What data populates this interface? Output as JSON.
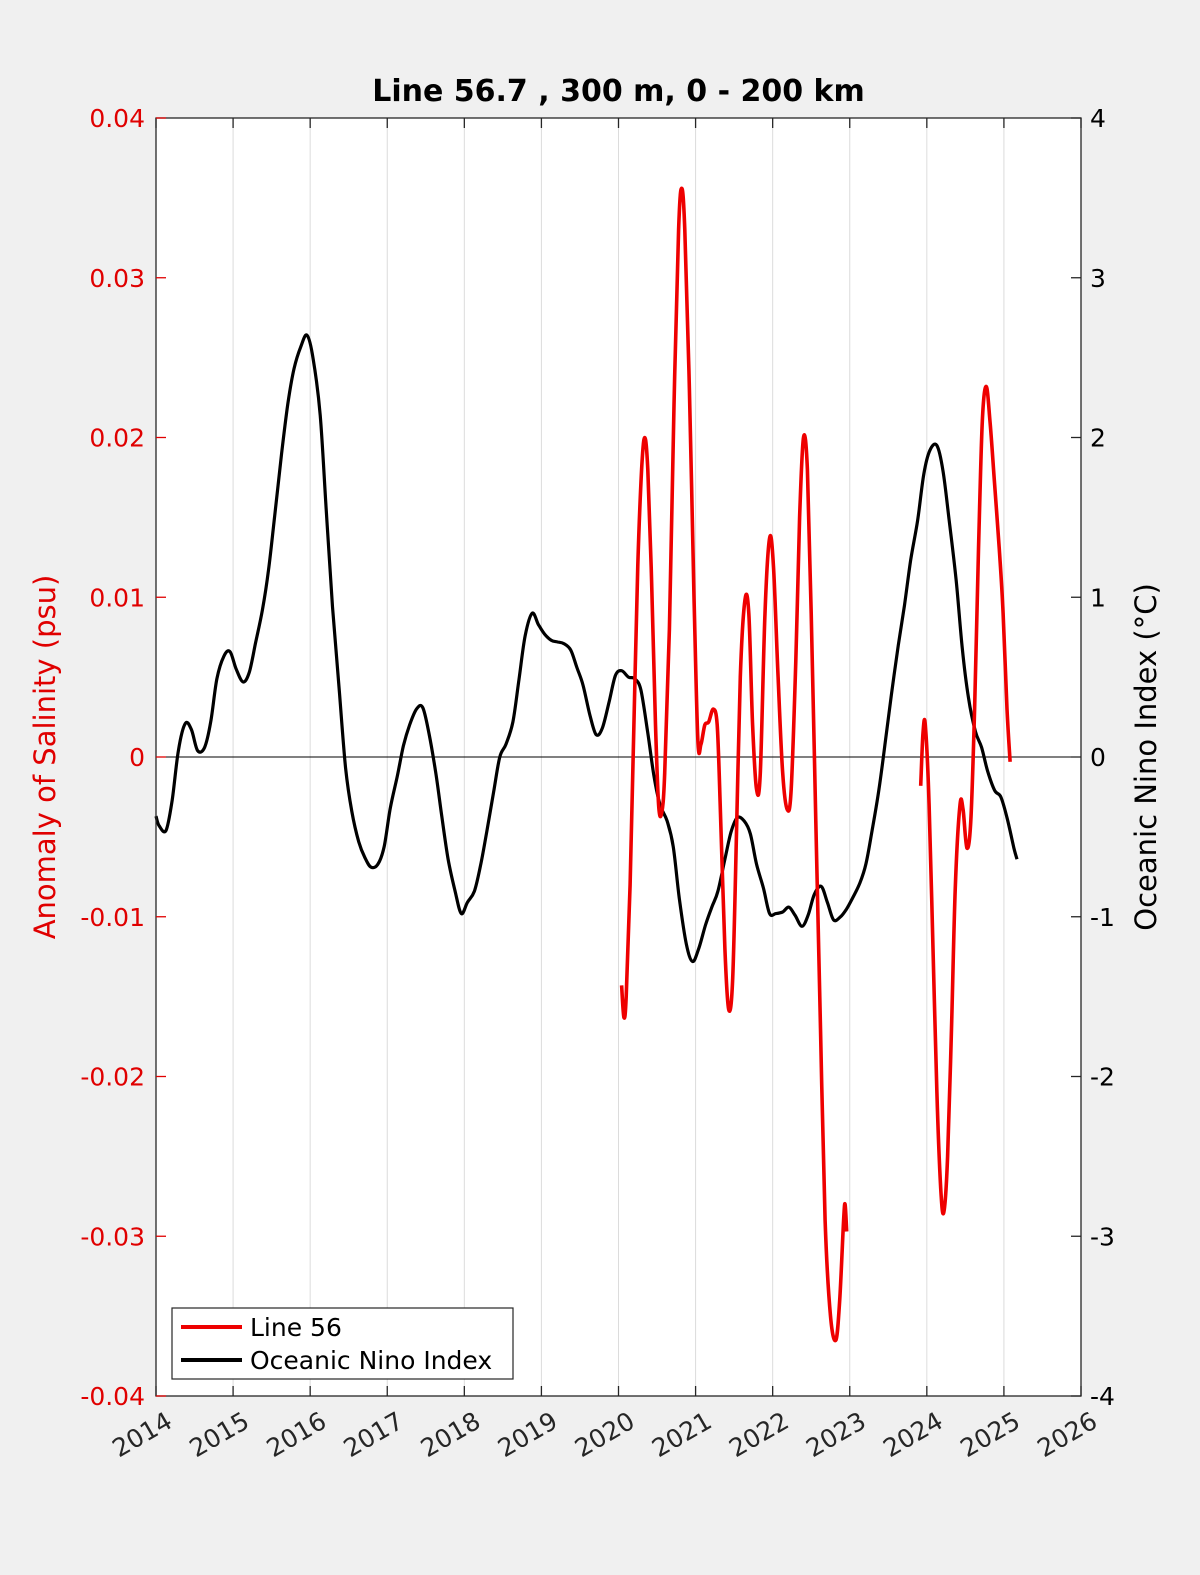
{
  "chart_data": {
    "type": "line",
    "title": "Line 56.7 , 300 m, 0 - 200 km",
    "xlabel": "",
    "ylabel_left": "Anomaly of Salinity (psu)",
    "ylabel_right": "Oceanic Nino Index (°C)",
    "xlim": [
      2014,
      2026
    ],
    "ylim_left": [
      -0.04,
      0.04
    ],
    "ylim_right": [
      -4,
      4
    ],
    "x_ticks": [
      "2014",
      "2015",
      "2016",
      "2017",
      "2018",
      "2019",
      "2020",
      "2021",
      "2022",
      "2023",
      "2024",
      "2025",
      "2026"
    ],
    "y_left_ticks": [
      "0.04",
      "0.03",
      "0.02",
      "0.01",
      "0",
      "-0.01",
      "-0.02",
      "-0.03",
      "-0.04"
    ],
    "y_right_ticks": [
      "4",
      "3",
      "2",
      "1",
      "0",
      "-1",
      "-2",
      "-3",
      "-4"
    ],
    "grid": "vertical",
    "zero_line": true,
    "legend_position": "bottom-left",
    "colors": {
      "line56": "#ee0000",
      "oni": "#000000",
      "left_axis": "#e00000",
      "grid": "#dcdcdc"
    },
    "series": [
      {
        "name": "Line 56",
        "axis": "left",
        "segments": [
          [
            [
              2020.04,
              -0.0143
            ],
            [
              2020.07,
              -0.0163
            ],
            [
              2020.1,
              -0.015
            ],
            [
              2020.15,
              -0.008
            ],
            [
              2020.2,
              0.002
            ],
            [
              2020.25,
              0.012
            ],
            [
              2020.3,
              0.018
            ],
            [
              2020.34,
              0.02
            ],
            [
              2020.38,
              0.018
            ],
            [
              2020.43,
              0.011
            ],
            [
              2020.48,
              0.002
            ],
            [
              2020.52,
              -0.003
            ],
            [
              2020.56,
              -0.0035
            ],
            [
              2020.6,
              -0.001
            ],
            [
              2020.66,
              0.008
            ],
            [
              2020.72,
              0.022
            ],
            [
              2020.78,
              0.033
            ],
            [
              2020.82,
              0.0356
            ],
            [
              2020.86,
              0.033
            ],
            [
              2020.92,
              0.023
            ],
            [
              2020.98,
              0.01
            ],
            [
              2021.03,
              0.001
            ],
            [
              2021.07,
              0.0008
            ],
            [
              2021.12,
              0.002
            ],
            [
              2021.17,
              0.0022
            ],
            [
              2021.23,
              0.003
            ],
            [
              2021.28,
              0.002
            ],
            [
              2021.32,
              -0.003
            ],
            [
              2021.38,
              -0.012
            ],
            [
              2021.43,
              -0.0158
            ],
            [
              2021.48,
              -0.014
            ],
            [
              2021.53,
              -0.005
            ],
            [
              2021.58,
              0.005
            ],
            [
              2021.64,
              0.0098
            ],
            [
              2021.69,
              0.009
            ],
            [
              2021.74,
              0.002
            ],
            [
              2021.79,
              -0.002
            ],
            [
              2021.84,
              -0.001
            ],
            [
              2021.9,
              0.009
            ],
            [
              2021.96,
              0.0137
            ],
            [
              2022.01,
              0.012
            ],
            [
              2022.07,
              0.005
            ],
            [
              2022.13,
              -0.001
            ],
            [
              2022.19,
              -0.0033
            ],
            [
              2022.24,
              -0.002
            ],
            [
              2022.3,
              0.006
            ],
            [
              2022.35,
              0.015
            ],
            [
              2022.4,
              0.02
            ],
            [
              2022.45,
              0.018
            ],
            [
              2022.5,
              0.009
            ],
            [
              2022.56,
              -0.004
            ],
            [
              2022.62,
              -0.017
            ],
            [
              2022.68,
              -0.029
            ],
            [
              2022.75,
              -0.035
            ],
            [
              2022.82,
              -0.0365
            ],
            [
              2022.87,
              -0.034
            ],
            [
              2022.92,
              -0.029
            ],
            [
              2022.94,
              -0.028
            ],
            [
              2022.96,
              -0.0297
            ]
          ],
          [
            [
              2023.92,
              -0.0018
            ],
            [
              2023.95,
              0.0015
            ],
            [
              2023.98,
              0.002
            ],
            [
              2024.03,
              -0.003
            ],
            [
              2024.08,
              -0.012
            ],
            [
              2024.13,
              -0.021
            ],
            [
              2024.18,
              -0.027
            ],
            [
              2024.22,
              -0.0285
            ],
            [
              2024.27,
              -0.025
            ],
            [
              2024.32,
              -0.017
            ],
            [
              2024.37,
              -0.008
            ],
            [
              2024.43,
              -0.003
            ],
            [
              2024.47,
              -0.0033
            ],
            [
              2024.52,
              -0.0057
            ],
            [
              2024.57,
              -0.004
            ],
            [
              2024.62,
              0.003
            ],
            [
              2024.67,
              0.013
            ],
            [
              2024.72,
              0.021
            ],
            [
              2024.77,
              0.0232
            ],
            [
              2024.82,
              0.021
            ],
            [
              2024.88,
              0.017
            ],
            [
              2024.94,
              0.013
            ],
            [
              2024.99,
              0.009
            ],
            [
              2025.04,
              0.003
            ],
            [
              2025.08,
              -0.0003
            ]
          ]
        ]
      },
      {
        "name": "Oceanic Nino Index",
        "axis": "right",
        "points": [
          [
            2014.0,
            -0.37
          ],
          [
            2014.04,
            -0.43
          ],
          [
            2014.13,
            -0.46
          ],
          [
            2014.21,
            -0.27
          ],
          [
            2014.29,
            0.04
          ],
          [
            2014.38,
            0.21
          ],
          [
            2014.46,
            0.17
          ],
          [
            2014.54,
            0.04
          ],
          [
            2014.63,
            0.06
          ],
          [
            2014.71,
            0.22
          ],
          [
            2014.79,
            0.49
          ],
          [
            2014.88,
            0.63
          ],
          [
            2014.96,
            0.66
          ],
          [
            2015.04,
            0.55
          ],
          [
            2015.13,
            0.47
          ],
          [
            2015.21,
            0.53
          ],
          [
            2015.29,
            0.71
          ],
          [
            2015.38,
            0.92
          ],
          [
            2015.46,
            1.17
          ],
          [
            2015.54,
            1.51
          ],
          [
            2015.63,
            1.9
          ],
          [
            2015.71,
            2.21
          ],
          [
            2015.79,
            2.43
          ],
          [
            2015.88,
            2.57
          ],
          [
            2015.96,
            2.64
          ],
          [
            2016.04,
            2.49
          ],
          [
            2016.13,
            2.14
          ],
          [
            2016.21,
            1.53
          ],
          [
            2016.29,
            0.94
          ],
          [
            2016.38,
            0.4
          ],
          [
            2016.46,
            -0.07
          ],
          [
            2016.54,
            -0.34
          ],
          [
            2016.63,
            -0.53
          ],
          [
            2016.71,
            -0.63
          ],
          [
            2016.79,
            -0.69
          ],
          [
            2016.88,
            -0.67
          ],
          [
            2016.96,
            -0.56
          ],
          [
            2017.04,
            -0.32
          ],
          [
            2017.13,
            -0.12
          ],
          [
            2017.21,
            0.07
          ],
          [
            2017.29,
            0.2
          ],
          [
            2017.38,
            0.3
          ],
          [
            2017.46,
            0.31
          ],
          [
            2017.54,
            0.15
          ],
          [
            2017.63,
            -0.1
          ],
          [
            2017.71,
            -0.38
          ],
          [
            2017.79,
            -0.64
          ],
          [
            2017.88,
            -0.84
          ],
          [
            2017.96,
            -0.98
          ],
          [
            2018.04,
            -0.91
          ],
          [
            2018.13,
            -0.84
          ],
          [
            2018.21,
            -0.68
          ],
          [
            2018.29,
            -0.47
          ],
          [
            2018.38,
            -0.22
          ],
          [
            2018.46,
            0.0
          ],
          [
            2018.54,
            0.08
          ],
          [
            2018.63,
            0.22
          ],
          [
            2018.71,
            0.49
          ],
          [
            2018.79,
            0.76
          ],
          [
            2018.88,
            0.9
          ],
          [
            2018.96,
            0.83
          ],
          [
            2019.04,
            0.77
          ],
          [
            2019.13,
            0.73
          ],
          [
            2019.21,
            0.72
          ],
          [
            2019.29,
            0.71
          ],
          [
            2019.38,
            0.67
          ],
          [
            2019.46,
            0.56
          ],
          [
            2019.54,
            0.45
          ],
          [
            2019.63,
            0.26
          ],
          [
            2019.71,
            0.14
          ],
          [
            2019.79,
            0.18
          ],
          [
            2019.88,
            0.35
          ],
          [
            2019.96,
            0.51
          ],
          [
            2020.04,
            0.54
          ],
          [
            2020.13,
            0.5
          ],
          [
            2020.21,
            0.49
          ],
          [
            2020.29,
            0.42
          ],
          [
            2020.38,
            0.15
          ],
          [
            2020.46,
            -0.12
          ],
          [
            2020.54,
            -0.3
          ],
          [
            2020.63,
            -0.4
          ],
          [
            2020.71,
            -0.56
          ],
          [
            2020.79,
            -0.89
          ],
          [
            2020.88,
            -1.17
          ],
          [
            2020.96,
            -1.28
          ],
          [
            2021.04,
            -1.2
          ],
          [
            2021.13,
            -1.05
          ],
          [
            2021.21,
            -0.94
          ],
          [
            2021.29,
            -0.84
          ],
          [
            2021.38,
            -0.64
          ],
          [
            2021.46,
            -0.47
          ],
          [
            2021.54,
            -0.38
          ],
          [
            2021.63,
            -0.4
          ],
          [
            2021.71,
            -0.48
          ],
          [
            2021.79,
            -0.67
          ],
          [
            2021.88,
            -0.82
          ],
          [
            2021.96,
            -0.98
          ],
          [
            2022.04,
            -0.98
          ],
          [
            2022.13,
            -0.97
          ],
          [
            2022.21,
            -0.94
          ],
          [
            2022.29,
            -0.99
          ],
          [
            2022.38,
            -1.06
          ],
          [
            2022.46,
            -0.99
          ],
          [
            2022.54,
            -0.86
          ],
          [
            2022.63,
            -0.81
          ],
          [
            2022.71,
            -0.91
          ],
          [
            2022.79,
            -1.02
          ],
          [
            2022.88,
            -1.0
          ],
          [
            2022.96,
            -0.95
          ],
          [
            2023.04,
            -0.88
          ],
          [
            2023.13,
            -0.79
          ],
          [
            2023.21,
            -0.67
          ],
          [
            2023.29,
            -0.46
          ],
          [
            2023.38,
            -0.2
          ],
          [
            2023.46,
            0.09
          ],
          [
            2023.54,
            0.39
          ],
          [
            2023.63,
            0.7
          ],
          [
            2023.71,
            0.95
          ],
          [
            2023.79,
            1.23
          ],
          [
            2023.88,
            1.48
          ],
          [
            2023.96,
            1.77
          ],
          [
            2024.04,
            1.92
          ],
          [
            2024.13,
            1.95
          ],
          [
            2024.21,
            1.79
          ],
          [
            2024.29,
            1.48
          ],
          [
            2024.38,
            1.11
          ],
          [
            2024.46,
            0.68
          ],
          [
            2024.54,
            0.37
          ],
          [
            2024.63,
            0.16
          ],
          [
            2024.71,
            0.06
          ],
          [
            2024.79,
            -0.09
          ],
          [
            2024.88,
            -0.21
          ],
          [
            2024.96,
            -0.25
          ],
          [
            2025.04,
            -0.38
          ],
          [
            2025.13,
            -0.57
          ],
          [
            2025.17,
            -0.64
          ]
        ]
      }
    ]
  }
}
